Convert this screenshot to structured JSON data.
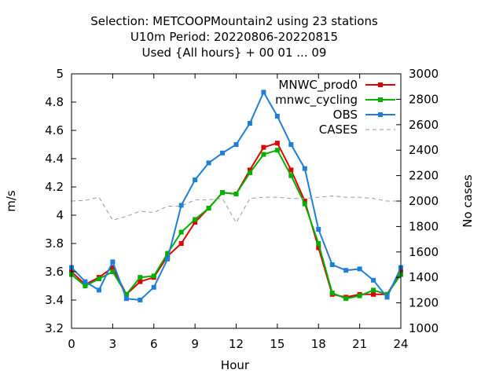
{
  "chart_data": {
    "type": "line",
    "title_lines": [
      "Selection: METCOOPMountain2 using    23 stations",
      "U10m   Period: 20220806-20220815",
      "Used {All hours} + 00 01 ... 09"
    ],
    "xlabel": "Hour",
    "ylabel": "m/s",
    "y2label": "No cases",
    "xlim": [
      0,
      24
    ],
    "ylim": [
      3.2,
      5.0
    ],
    "y2lim": [
      1000,
      3000
    ],
    "xticks": [
      "0",
      "3",
      "6",
      "9",
      "12",
      "15",
      "18",
      "21",
      "24"
    ],
    "yticks": [
      "3.2",
      "3.4",
      "3.6",
      "3.8",
      "4",
      "4.2",
      "4.4",
      "4.6",
      "4.8",
      "5"
    ],
    "y2ticks": [
      "1000",
      "1200",
      "1400",
      "1600",
      "1800",
      "2000",
      "2200",
      "2400",
      "2600",
      "2800",
      "3000"
    ],
    "legend_position": "top-right",
    "x": [
      0,
      1,
      2,
      3,
      4,
      5,
      6,
      7,
      8,
      9,
      10,
      11,
      12,
      13,
      14,
      15,
      16,
      17,
      18,
      19,
      20,
      21,
      22,
      23,
      24
    ],
    "series": [
      {
        "name": "MNWC_prod0",
        "color": "#e00000",
        "axis": "y",
        "values": [
          3.6,
          3.51,
          3.56,
          3.63,
          3.44,
          3.53,
          3.56,
          3.71,
          3.8,
          3.95,
          4.05,
          4.16,
          4.15,
          4.32,
          4.48,
          4.51,
          4.32,
          4.1,
          3.77,
          3.44,
          3.42,
          3.44,
          3.44,
          3.44,
          3.6
        ]
      },
      {
        "name": "mnwc_cycling",
        "color": "#00b000",
        "axis": "y",
        "values": [
          3.58,
          3.5,
          3.55,
          3.6,
          3.44,
          3.56,
          3.57,
          3.73,
          3.88,
          3.97,
          4.05,
          4.16,
          4.15,
          4.3,
          4.43,
          4.46,
          4.28,
          4.08,
          3.8,
          3.45,
          3.41,
          3.43,
          3.47,
          3.44,
          3.58
        ]
      },
      {
        "name": "OBS",
        "color": "#1f7fd6",
        "axis": "y",
        "values": [
          3.63,
          3.53,
          3.47,
          3.67,
          3.41,
          3.4,
          3.49,
          3.69,
          4.07,
          4.25,
          4.37,
          4.44,
          4.5,
          4.65,
          4.87,
          4.7,
          4.5,
          4.33,
          3.9,
          3.65,
          3.61,
          3.62,
          3.54,
          3.42,
          3.63
        ]
      },
      {
        "name": "CASES",
        "color": "#999999",
        "axis": "y2",
        "dashed": true,
        "values": [
          2000,
          2005,
          2030,
          1850,
          1880,
          1920,
          1910,
          1960,
          1960,
          2010,
          2010,
          2020,
          1830,
          2020,
          2030,
          2030,
          2020,
          2020,
          2030,
          2040,
          2030,
          2030,
          2020,
          2000,
          2000
        ]
      }
    ]
  }
}
